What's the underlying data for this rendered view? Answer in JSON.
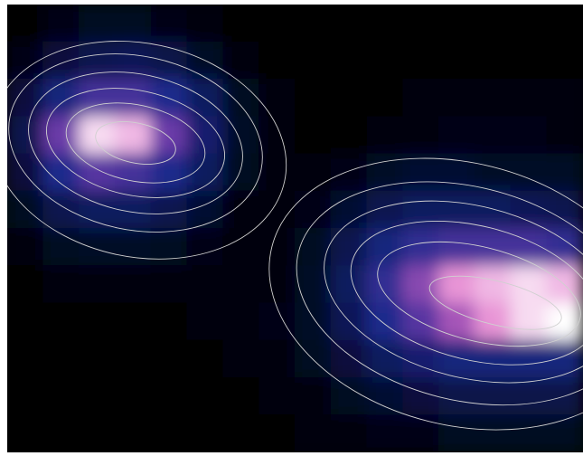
{
  "chart_data": {
    "type": "heatmap",
    "zlim": [
      0,
      1
    ],
    "colorscale": [
      "#000000",
      "#0a1450",
      "#1e2a8c",
      "#6a3aa8",
      "#e070c8",
      "#ffffff"
    ],
    "z": [
      [
        0,
        0.05,
        0.08,
        0.08,
        0.06,
        0.03,
        0,
        0,
        0,
        0,
        0,
        0,
        0,
        0,
        0,
        0
      ],
      [
        0.05,
        0.15,
        0.2,
        0.22,
        0.18,
        0.1,
        0.03,
        0,
        0,
        0,
        0,
        0,
        0,
        0,
        0,
        0
      ],
      [
        0.15,
        0.35,
        0.5,
        0.5,
        0.4,
        0.25,
        0.08,
        0.02,
        0,
        0,
        0,
        0.02,
        0.03,
        0.02,
        0.02,
        0.02
      ],
      [
        0.2,
        0.6,
        0.95,
        0.9,
        0.6,
        0.3,
        0.1,
        0.02,
        0,
        0,
        0.02,
        0.04,
        0.05,
        0.05,
        0.05,
        0.04
      ],
      [
        0.15,
        0.4,
        0.55,
        0.5,
        0.4,
        0.25,
        0.08,
        0.02,
        0.02,
        0.05,
        0.1,
        0.12,
        0.12,
        0.1,
        0.1,
        0.1
      ],
      [
        0.08,
        0.2,
        0.25,
        0.25,
        0.2,
        0.12,
        0.04,
        0.02,
        0.05,
        0.12,
        0.2,
        0.25,
        0.25,
        0.25,
        0.22,
        0.2
      ],
      [
        0.03,
        0.08,
        0.1,
        0.1,
        0.08,
        0.05,
        0.02,
        0.03,
        0.08,
        0.2,
        0.35,
        0.45,
        0.5,
        0.5,
        0.5,
        0.45
      ],
      [
        0,
        0.02,
        0.03,
        0.03,
        0.03,
        0.02,
        0.02,
        0.03,
        0.1,
        0.25,
        0.45,
        0.65,
        0.85,
        0.9,
        0.95,
        0.9
      ],
      [
        0,
        0,
        0,
        0,
        0,
        0.02,
        0.02,
        0.05,
        0.1,
        0.22,
        0.4,
        0.55,
        0.7,
        0.85,
        0.95,
        1
      ],
      [
        0,
        0,
        0,
        0,
        0,
        0,
        0.02,
        0.03,
        0.08,
        0.15,
        0.25,
        0.3,
        0.35,
        0.35,
        0.35,
        0.35
      ],
      [
        0,
        0,
        0,
        0,
        0,
        0,
        0,
        0.02,
        0.04,
        0.08,
        0.12,
        0.15,
        0.18,
        0.18,
        0.18,
        0.18
      ],
      [
        0,
        0,
        0,
        0,
        0,
        0,
        0,
        0,
        0.02,
        0.03,
        0.05,
        0.06,
        0.08,
        0.08,
        0.08,
        0.08
      ]
    ]
  }
}
